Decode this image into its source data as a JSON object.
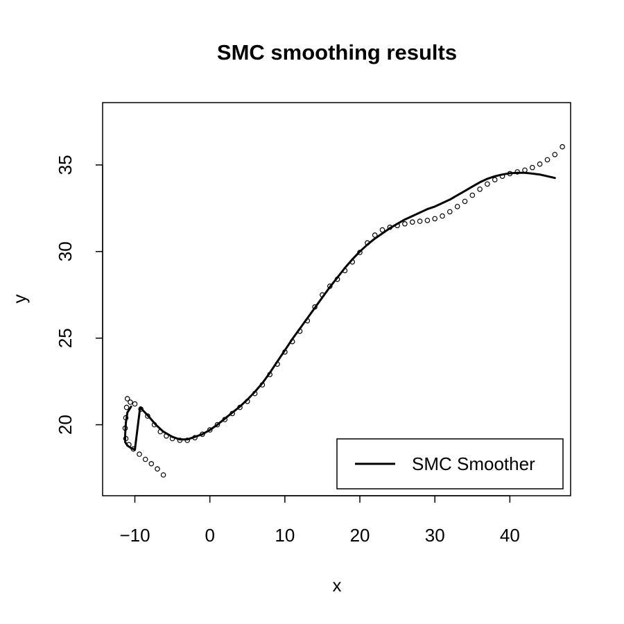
{
  "chart_data": {
    "type": "scatter",
    "title": "SMC smoothing results",
    "xlabel": "x",
    "ylabel": "y",
    "xlim": [
      -14.3,
      48.1
    ],
    "ylim": [
      15.9,
      38.6
    ],
    "x_ticks": [
      -10,
      0,
      10,
      20,
      30,
      40
    ],
    "y_ticks": [
      20,
      25,
      30,
      35
    ],
    "grid": false,
    "legend_position": "bottom-right",
    "series": [
      {
        "name": "",
        "kind": "points",
        "marker": "open-circle",
        "color": "#000000",
        "points": [
          [
            -6.2,
            17.1
          ],
          [
            -7.0,
            17.45
          ],
          [
            -7.8,
            17.75
          ],
          [
            -8.6,
            18.0
          ],
          [
            -9.4,
            18.3
          ],
          [
            -10.2,
            18.6
          ],
          [
            -10.8,
            18.85
          ],
          [
            -11.2,
            19.2
          ],
          [
            -11.3,
            19.8
          ],
          [
            -11.2,
            20.4
          ],
          [
            -11.1,
            21.0
          ],
          [
            -11.0,
            21.5
          ],
          [
            -10.6,
            21.3
          ],
          [
            -10.0,
            21.2
          ],
          [
            -9.2,
            20.9
          ],
          [
            -8.3,
            20.5
          ],
          [
            -7.4,
            20.0
          ],
          [
            -6.6,
            19.6
          ],
          [
            -5.8,
            19.35
          ],
          [
            -5.0,
            19.2
          ],
          [
            -4.0,
            19.1
          ],
          [
            -3.0,
            19.1
          ],
          [
            -2.0,
            19.25
          ],
          [
            -1.0,
            19.45
          ],
          [
            0.0,
            19.7
          ],
          [
            1.0,
            20.0
          ],
          [
            2.0,
            20.3
          ],
          [
            3.0,
            20.65
          ],
          [
            4.0,
            21.0
          ],
          [
            5.0,
            21.35
          ],
          [
            6.0,
            21.8
          ],
          [
            7.0,
            22.3
          ],
          [
            8.0,
            22.9
          ],
          [
            9.0,
            23.5
          ],
          [
            10.0,
            24.2
          ],
          [
            11.0,
            24.8
          ],
          [
            12.0,
            25.4
          ],
          [
            13.0,
            26.0
          ],
          [
            14.0,
            26.8
          ],
          [
            15.0,
            27.5
          ],
          [
            16.0,
            28.0
          ],
          [
            17.0,
            28.4
          ],
          [
            18.0,
            28.9
          ],
          [
            19.0,
            29.4
          ],
          [
            20.0,
            29.95
          ],
          [
            21.0,
            30.5
          ],
          [
            22.0,
            30.95
          ],
          [
            23.0,
            31.25
          ],
          [
            24.0,
            31.4
          ],
          [
            25.0,
            31.5
          ],
          [
            26.0,
            31.6
          ],
          [
            27.0,
            31.7
          ],
          [
            28.0,
            31.75
          ],
          [
            29.0,
            31.8
          ],
          [
            30.0,
            31.9
          ],
          [
            31.0,
            32.05
          ],
          [
            32.0,
            32.3
          ],
          [
            33.0,
            32.6
          ],
          [
            34.0,
            32.9
          ],
          [
            35.0,
            33.25
          ],
          [
            36.0,
            33.6
          ],
          [
            37.0,
            33.9
          ],
          [
            38.0,
            34.15
          ],
          [
            39.0,
            34.35
          ],
          [
            40.0,
            34.5
          ],
          [
            41.0,
            34.6
          ],
          [
            42.0,
            34.7
          ],
          [
            43.0,
            34.85
          ],
          [
            44.0,
            35.05
          ],
          [
            45.0,
            35.3
          ],
          [
            46.0,
            35.6
          ],
          [
            47.0,
            36.05
          ]
        ]
      },
      {
        "name": "SMC Smoother",
        "kind": "line",
        "color": "#000000",
        "points": [
          [
            -10.5,
            21.05
          ],
          [
            -11.0,
            20.7
          ],
          [
            -11.2,
            20.1
          ],
          [
            -11.3,
            19.4
          ],
          [
            -11.3,
            19.0
          ],
          [
            -11.0,
            18.8
          ],
          [
            -10.5,
            18.65
          ],
          [
            -10.0,
            18.55
          ],
          [
            -9.3,
            21.0
          ],
          [
            -8.2,
            20.5
          ],
          [
            -7.2,
            20.0
          ],
          [
            -6.2,
            19.6
          ],
          [
            -5.0,
            19.3
          ],
          [
            -4.0,
            19.15
          ],
          [
            -3.0,
            19.15
          ],
          [
            -2.0,
            19.3
          ],
          [
            -1.0,
            19.45
          ],
          [
            0.0,
            19.7
          ],
          [
            1.0,
            20.0
          ],
          [
            2.0,
            20.35
          ],
          [
            3.0,
            20.7
          ],
          [
            4.0,
            21.05
          ],
          [
            5.0,
            21.45
          ],
          [
            6.0,
            21.9
          ],
          [
            7.0,
            22.4
          ],
          [
            8.0,
            23.0
          ],
          [
            9.0,
            23.65
          ],
          [
            10.0,
            24.3
          ],
          [
            11.0,
            24.95
          ],
          [
            12.0,
            25.55
          ],
          [
            13.0,
            26.15
          ],
          [
            14.0,
            26.75
          ],
          [
            15.0,
            27.35
          ],
          [
            16.0,
            27.95
          ],
          [
            17.0,
            28.5
          ],
          [
            18.0,
            29.05
          ],
          [
            19.0,
            29.55
          ],
          [
            20.0,
            30.0
          ],
          [
            21.0,
            30.4
          ],
          [
            22.0,
            30.75
          ],
          [
            23.0,
            31.05
          ],
          [
            24.0,
            31.35
          ],
          [
            25.0,
            31.6
          ],
          [
            26.0,
            31.85
          ],
          [
            27.0,
            32.05
          ],
          [
            28.0,
            32.25
          ],
          [
            29.0,
            32.45
          ],
          [
            30.0,
            32.6
          ],
          [
            31.0,
            32.8
          ],
          [
            32.0,
            33.0
          ],
          [
            33.0,
            33.25
          ],
          [
            34.0,
            33.5
          ],
          [
            35.0,
            33.75
          ],
          [
            36.0,
            34.0
          ],
          [
            37.0,
            34.2
          ],
          [
            38.0,
            34.35
          ],
          [
            39.0,
            34.45
          ],
          [
            40.0,
            34.52
          ],
          [
            41.0,
            34.55
          ],
          [
            42.0,
            34.55
          ],
          [
            43.0,
            34.5
          ],
          [
            44.0,
            34.45
          ],
          [
            45.0,
            34.35
          ],
          [
            46.0,
            34.25
          ]
        ]
      }
    ]
  }
}
